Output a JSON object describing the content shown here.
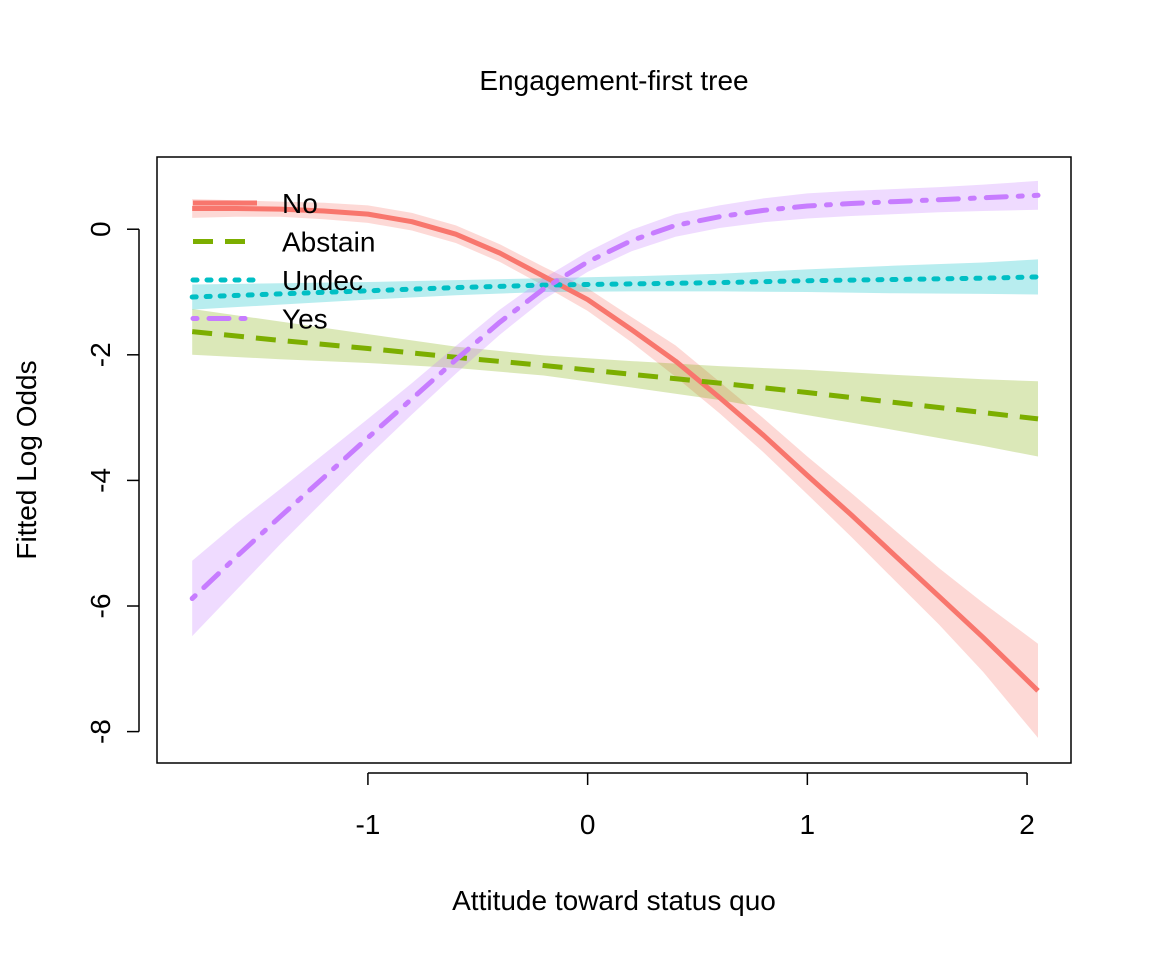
{
  "chart_data": {
    "type": "line",
    "title": "Engagement-first tree",
    "xlabel": "Attitude toward status quo",
    "ylabel": "Fitted Log Odds",
    "xlim": [
      -1.96,
      2.2
    ],
    "ylim": [
      -8.5,
      1.15
    ],
    "xticks": [
      -1,
      0,
      1,
      2
    ],
    "xtick_labels": [
      "-1",
      "0",
      "1",
      "2"
    ],
    "yticks": [
      -8,
      -6,
      -4,
      -2,
      0
    ],
    "ytick_labels": [
      "-8",
      "-6",
      "-4",
      "-2",
      "0"
    ],
    "legend_position": "top-left",
    "grid": false,
    "series": [
      {
        "name": "No",
        "color": "#F8766D",
        "dash": "solid",
        "x": [
          -1.8,
          -1.6,
          -1.4,
          -1.2,
          -1.0,
          -0.8,
          -0.6,
          -0.4,
          -0.2,
          0.0,
          0.2,
          0.4,
          0.6,
          0.8,
          1.0,
          1.2,
          1.4,
          1.6,
          1.8,
          2.05
        ],
        "y": [
          0.33,
          0.33,
          0.32,
          0.29,
          0.24,
          0.12,
          -0.08,
          -0.38,
          -0.75,
          -1.12,
          -1.6,
          -2.1,
          -2.68,
          -3.28,
          -3.92,
          -4.55,
          -5.2,
          -5.85,
          -6.5,
          -7.35
        ],
        "lower": [
          0.18,
          0.2,
          0.2,
          0.16,
          0.1,
          -0.02,
          -0.22,
          -0.52,
          -0.9,
          -1.3,
          -1.8,
          -2.35,
          -2.93,
          -3.55,
          -4.22,
          -4.9,
          -5.6,
          -6.3,
          -7.05,
          -8.1
        ],
        "upper": [
          0.48,
          0.46,
          0.44,
          0.42,
          0.38,
          0.26,
          0.06,
          -0.24,
          -0.6,
          -0.94,
          -1.4,
          -1.85,
          -2.43,
          -3.01,
          -3.62,
          -4.2,
          -4.8,
          -5.4,
          -5.95,
          -6.6
        ]
      },
      {
        "name": "Abstain",
        "color": "#7CAE00",
        "dash": "dashed",
        "x": [
          -1.8,
          -1.4,
          -1.0,
          -0.6,
          -0.2,
          0.2,
          0.6,
          1.0,
          1.4,
          1.8,
          2.05
        ],
        "y": [
          -1.63,
          -1.77,
          -1.9,
          -2.04,
          -2.17,
          -2.31,
          -2.45,
          -2.6,
          -2.76,
          -2.92,
          -3.02
        ],
        "lower": [
          -2.0,
          -2.07,
          -2.13,
          -2.21,
          -2.33,
          -2.52,
          -2.72,
          -2.96,
          -3.2,
          -3.45,
          -3.62
        ],
        "upper": [
          -1.27,
          -1.47,
          -1.67,
          -1.87,
          -2.01,
          -2.1,
          -2.18,
          -2.24,
          -2.32,
          -2.39,
          -2.42
        ]
      },
      {
        "name": "Undec",
        "color": "#00BFC4",
        "dash": "dotted",
        "x": [
          -1.8,
          -1.4,
          -1.0,
          -0.6,
          -0.2,
          0.2,
          0.6,
          1.0,
          1.4,
          1.8,
          2.05
        ],
        "y": [
          -1.08,
          -1.03,
          -0.98,
          -0.93,
          -0.89,
          -0.87,
          -0.85,
          -0.82,
          -0.8,
          -0.78,
          -0.76
        ],
        "lower": [
          -1.28,
          -1.2,
          -1.12,
          -1.05,
          -1.0,
          -0.99,
          -0.99,
          -1.0,
          -1.02,
          -1.03,
          -1.04
        ],
        "upper": [
          -0.88,
          -0.86,
          -0.84,
          -0.81,
          -0.78,
          -0.75,
          -0.71,
          -0.64,
          -0.58,
          -0.53,
          -0.48
        ]
      },
      {
        "name": "Yes",
        "color": "#C77CFF",
        "dash": "dotdash",
        "x": [
          -1.8,
          -1.6,
          -1.4,
          -1.2,
          -1.0,
          -0.8,
          -0.6,
          -0.4,
          -0.2,
          0.0,
          0.2,
          0.4,
          0.6,
          0.8,
          1.0,
          1.2,
          1.4,
          1.6,
          1.8,
          2.05
        ],
        "y": [
          -5.88,
          -5.22,
          -4.58,
          -3.95,
          -3.32,
          -2.7,
          -2.08,
          -1.48,
          -0.95,
          -0.52,
          -0.18,
          0.06,
          0.2,
          0.3,
          0.37,
          0.41,
          0.44,
          0.47,
          0.5,
          0.54
        ],
        "lower": [
          -6.48,
          -5.75,
          -5.02,
          -4.32,
          -3.62,
          -2.95,
          -2.3,
          -1.68,
          -1.12,
          -0.68,
          -0.35,
          -0.12,
          0.02,
          0.11,
          0.17,
          0.21,
          0.24,
          0.27,
          0.29,
          0.31
        ],
        "upper": [
          -5.28,
          -4.69,
          -4.14,
          -3.58,
          -3.02,
          -2.45,
          -1.86,
          -1.28,
          -0.78,
          -0.36,
          -0.01,
          0.24,
          0.38,
          0.49,
          0.57,
          0.61,
          0.64,
          0.67,
          0.71,
          0.77
        ]
      }
    ]
  }
}
